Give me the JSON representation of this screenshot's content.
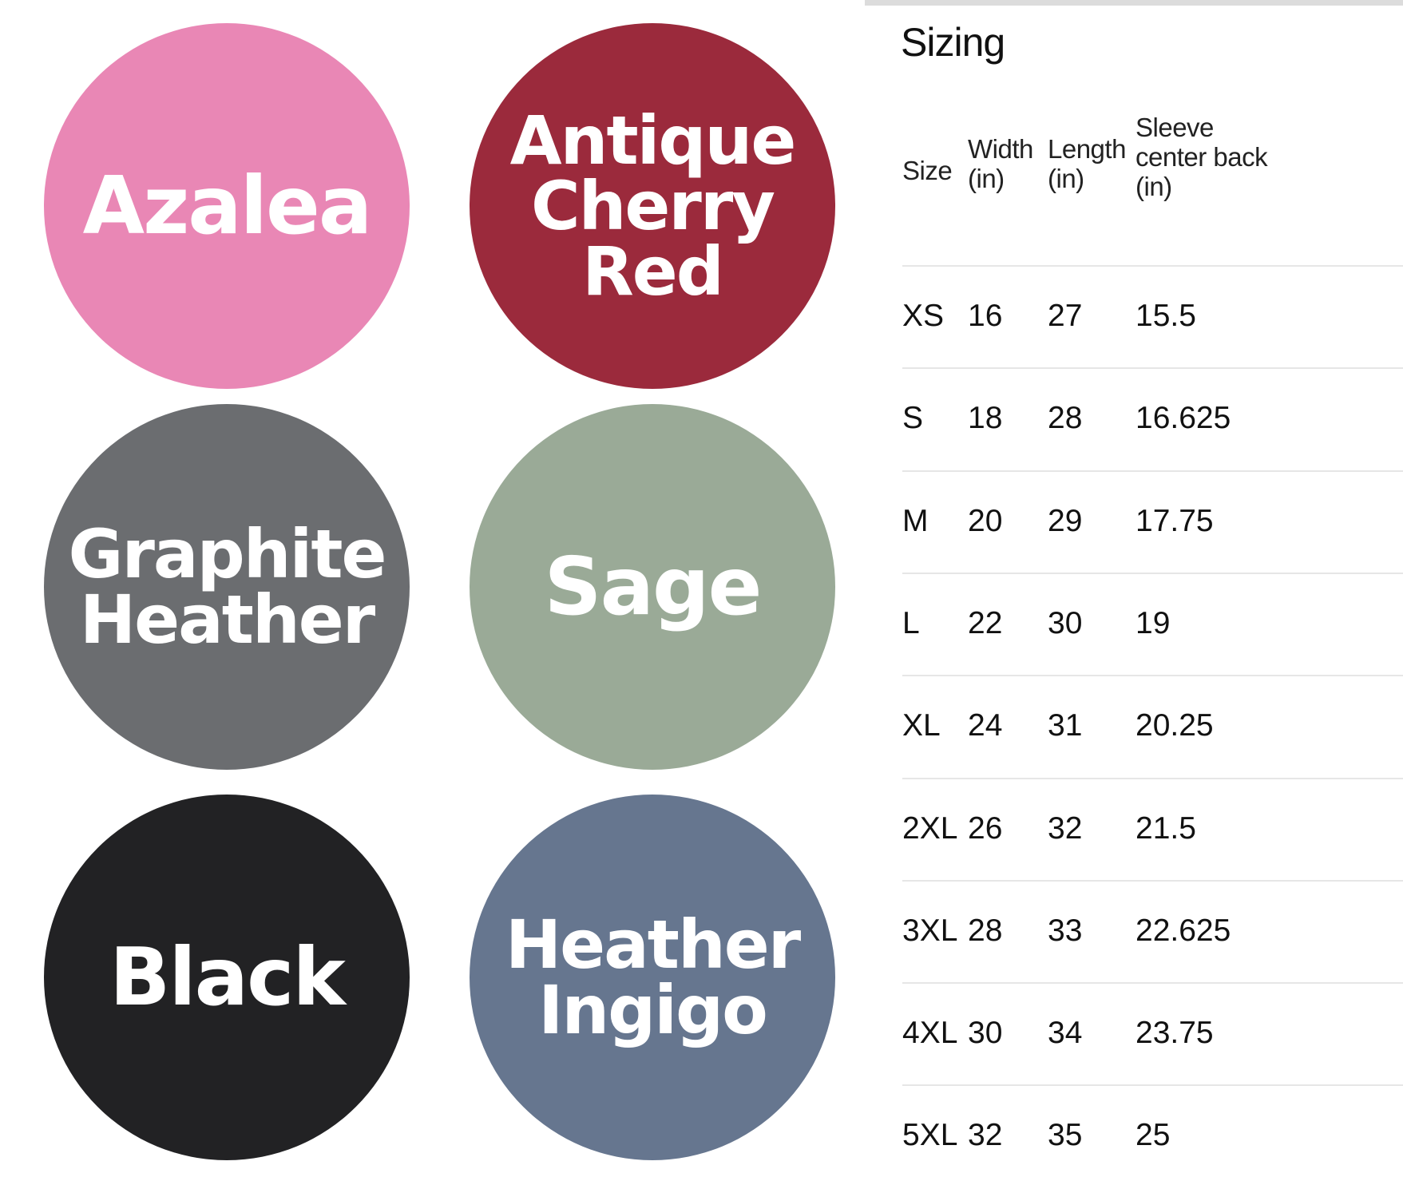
{
  "swatches": [
    {
      "label": "Azalea",
      "color": "#e987b5"
    },
    {
      "label": "Antique\nCherry\nRed",
      "color": "#9b2a3c"
    },
    {
      "label": "Graphite\nHeather",
      "color": "#6b6d70"
    },
    {
      "label": "Sage",
      "color": "#9aaa97"
    },
    {
      "label": "Black",
      "color": "#222224"
    },
    {
      "label": "Heather\nIngigo",
      "color": "#66768f"
    }
  ],
  "sizing": {
    "title": "Sizing",
    "headers": [
      "Size",
      "Width\n(in)",
      "Length\n(in)",
      "Sleeve\ncenter back\n(in)"
    ],
    "rows": [
      [
        "XS",
        "16",
        "27",
        "15.5"
      ],
      [
        "S",
        "18",
        "28",
        "16.625"
      ],
      [
        "M",
        "20",
        "29",
        "17.75"
      ],
      [
        "L",
        "22",
        "30",
        "19"
      ],
      [
        "XL",
        "24",
        "31",
        "20.25"
      ],
      [
        "2XL",
        "26",
        "32",
        "21.5"
      ],
      [
        "3XL",
        "28",
        "33",
        "22.625"
      ],
      [
        "4XL",
        "30",
        "34",
        "23.75"
      ],
      [
        "5XL",
        "32",
        "35",
        "25"
      ]
    ]
  }
}
